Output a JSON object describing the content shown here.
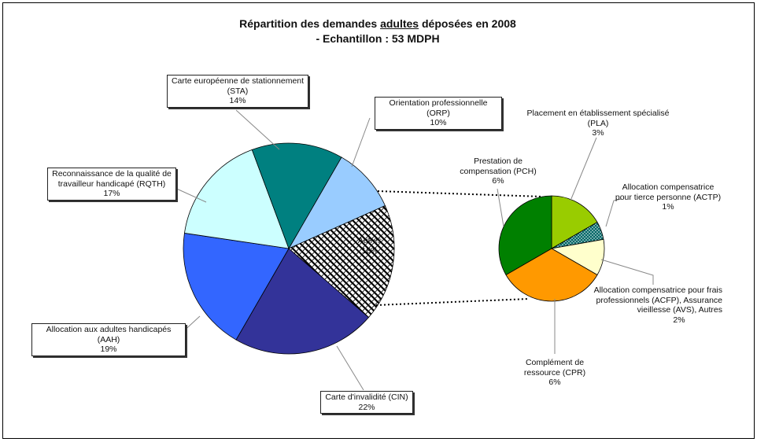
{
  "title_line1_pre": "Répartition des demandes ",
  "title_line1_u": "adultes",
  "title_line1_post": " déposées en 2008",
  "title_line2": "- Echantillon : 53 MDPH",
  "chart_data": [
    {
      "type": "pie",
      "slices": [
        {
          "label": "Orientation professionnelle (ORP)",
          "pct_label": "10%",
          "value": 10,
          "color": "#99ccff"
        },
        {
          "label": "Autres",
          "pct_label": "18%",
          "value": 18,
          "color": "pattern"
        },
        {
          "label": "Carte d'invalidité (CIN)",
          "pct_label": "22%",
          "value": 22,
          "color": "#333399"
        },
        {
          "label": "Allocation aux adultes handicapés (AAH)",
          "pct_label": "19%",
          "value": 19,
          "color": "#3366ff"
        },
        {
          "label": "Reconnaissance de la qualité de travailleur handicapé (RQTH)",
          "pct_label": "17%",
          "value": 17,
          "color": "#ccffff"
        },
        {
          "label": "Carte européenne de stationnement (STA)",
          "pct_label": "14%",
          "value": 14,
          "color": "#008080"
        }
      ]
    },
    {
      "type": "pie",
      "slices": [
        {
          "label": "Placement en établissement spécialisé (PLA)",
          "pct_label": "3%",
          "value": 3,
          "color": "#99cc00"
        },
        {
          "label": "Allocation compensatrice pour tierce personne (ACTP)",
          "pct_label": "1%",
          "value": 1,
          "color": "pattern-dots"
        },
        {
          "label": "Allocation compensatrice pour frais professionnels (ACFP), Assurance vieillesse (AVS), Autres",
          "pct_label": "2%",
          "value": 2,
          "color": "#ffffcc"
        },
        {
          "label": "Complément de ressource (CPR)",
          "pct_label": "6%",
          "value": 6,
          "color": "#ff9900"
        },
        {
          "label": "Prestation de compensation (PCH)",
          "pct_label": "6%",
          "value": 6,
          "color": "#008000"
        }
      ]
    }
  ],
  "labels": {
    "sta": {
      "l1": "Carte européenne de stationnement",
      "l2": "(STA)",
      "pct": "14%"
    },
    "orp": {
      "l1": "Orientation professionnelle (ORP)",
      "pct": "10%"
    },
    "rqth": {
      "l1": "Reconnaissance de la qualité de",
      "l2": "travailleur handicapé (RQTH)",
      "pct": "17%"
    },
    "aah": {
      "l1": "Allocation aux adultes handicapés (AAH)",
      "pct": "19%"
    },
    "cin": {
      "l1": "Carte d'invalidité (CIN)",
      "pct": "22%"
    },
    "autres": {
      "l1": "Autres",
      "pct": "18%"
    },
    "pla": {
      "l1": "Placement en établissement spécialisé",
      "l2": "(PLA)",
      "pct": "3%"
    },
    "pch": {
      "l1": "Prestation de",
      "l2": "compensation (PCH)",
      "pct": "6%"
    },
    "actp": {
      "l1": "Allocation compensatrice",
      "l2": "pour tierce personne (ACTP)",
      "pct": "1%"
    },
    "acfp": {
      "l1": "Allocation compensatrice pour frais",
      "l2": "professionnels (ACFP), Assurance",
      "l3": "vieillesse (AVS), Autres",
      "pct": "2%"
    },
    "cpr": {
      "l1": "Complément de",
      "l2": "ressource (CPR)",
      "pct": "6%"
    }
  }
}
